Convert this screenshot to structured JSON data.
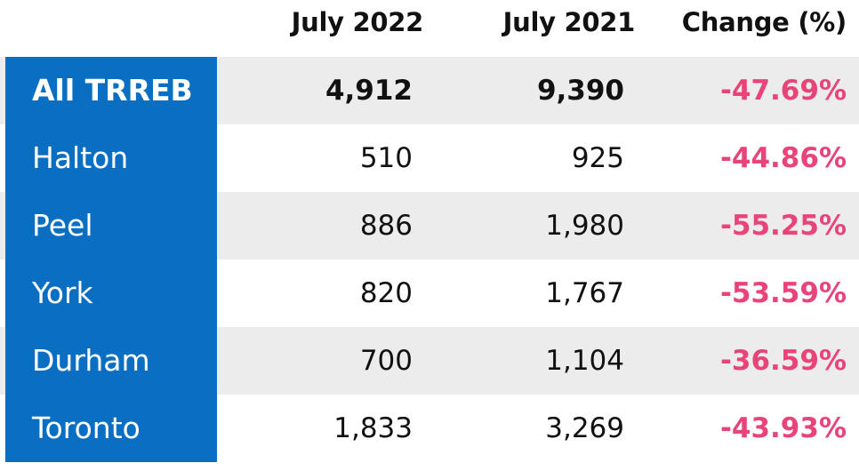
{
  "columns": [
    "July 2022",
    "July 2021",
    "Change (%)"
  ],
  "rows": [
    {
      "region": "All TRREB",
      "y2022": "4,912",
      "y2021": "9,390",
      "change": "-47.69%"
    },
    {
      "region": "Halton",
      "y2022": "510",
      "y2021": "925",
      "change": "-44.86%"
    },
    {
      "region": "Peel",
      "y2022": "886",
      "y2021": "1,980",
      "change": "-55.25%"
    },
    {
      "region": "York",
      "y2022": "820",
      "y2021": "1,767",
      "change": "-53.59%"
    },
    {
      "region": "Durham",
      "y2022": "700",
      "y2021": "1,104",
      "change": "-36.59%"
    },
    {
      "region": "Toronto",
      "y2022": "1,833",
      "y2021": "3,269",
      "change": "-43.93%"
    }
  ],
  "colors": {
    "region_bg": "#0a6fc2",
    "change_text": "#e9447a",
    "row_shade": "#ececec"
  }
}
